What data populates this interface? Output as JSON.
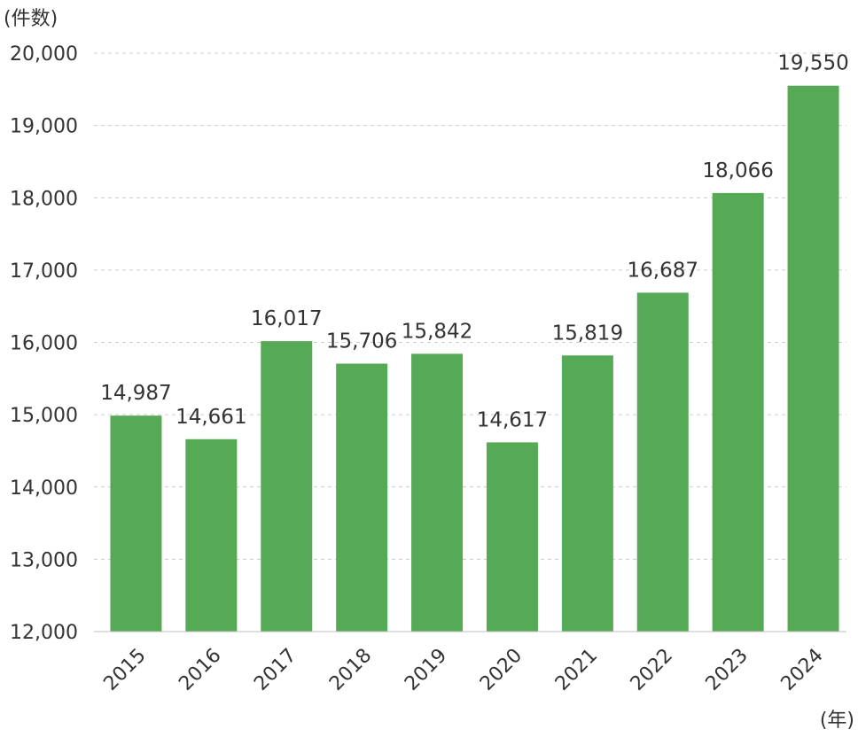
{
  "chart_data": {
    "type": "bar",
    "title": "",
    "ylabel": "(件数)",
    "xlabel": "(年)",
    "categories": [
      "2015",
      "2016",
      "2017",
      "2018",
      "2019",
      "2020",
      "2021",
      "2022",
      "2023",
      "2024"
    ],
    "values": [
      14987,
      14661,
      16017,
      15706,
      15842,
      14617,
      15819,
      16687,
      18066,
      19550
    ],
    "data_labels": [
      "14,987",
      "14,661",
      "16,017",
      "15,706",
      "15,842",
      "14,617",
      "15,819",
      "16,687",
      "18,066",
      "19,550"
    ],
    "ylim": [
      12000,
      20000
    ],
    "yticks": [
      12000,
      13000,
      14000,
      15000,
      16000,
      17000,
      18000,
      19000,
      20000
    ],
    "ytick_labels": [
      "12,000",
      "13,000",
      "14,000",
      "15,000",
      "16,000",
      "17,000",
      "18,000",
      "19,000",
      "20,000"
    ],
    "grid": true,
    "bar_color": "#57aa55"
  }
}
